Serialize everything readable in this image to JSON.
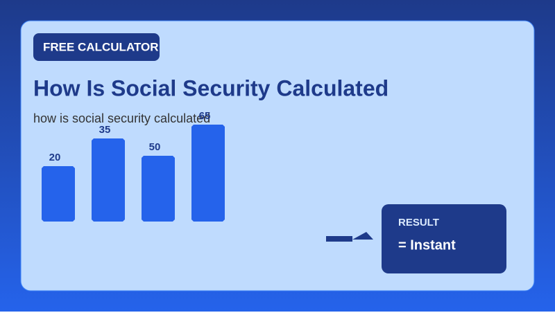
{
  "badge": "FREE CALCULATOR",
  "title": "How Is Social Security Calculated",
  "subtitle": "how is social security calculated",
  "bars": [
    20,
    35,
    50,
    65
  ],
  "result": {
    "label": "RESULT",
    "value": "= Instant"
  }
}
